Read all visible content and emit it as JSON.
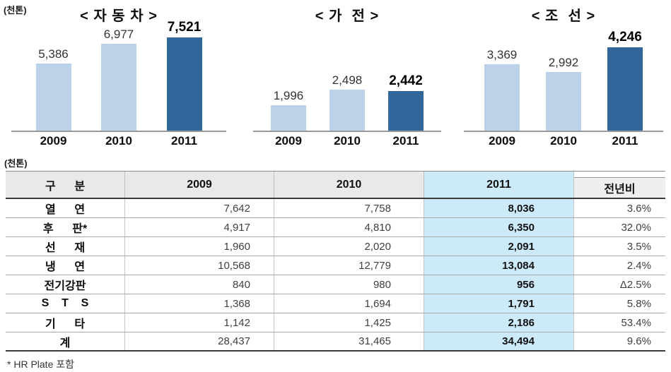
{
  "colors": {
    "bar_light": "#BCD2E9",
    "bar_dark": "#31679B",
    "highlight": "#CDEAFB",
    "header_gray": "#E9E9E9",
    "axis_line": "#9A9A9A"
  },
  "chart_data": [
    {
      "type": "bar",
      "title": "< 자 동 차 >",
      "unit_label": "(천톤)",
      "categories": [
        "2009",
        "2010",
        "2011"
      ],
      "values": [
        5386,
        6977,
        7521
      ],
      "value_labels": [
        "5,386",
        "6,977",
        "7,521"
      ],
      "ylim": [
        0,
        8700
      ],
      "highlight_index": 2,
      "legend": "none",
      "grid": "off"
    },
    {
      "type": "bar",
      "title": "< 가  전 >",
      "categories": [
        "2009",
        "2010",
        "2011"
      ],
      "values": [
        1996,
        2498,
        2442
      ],
      "value_labels": [
        "1,996",
        "2,498",
        "2,442"
      ],
      "ylim": [
        1200,
        4600
      ],
      "highlight_index": 2,
      "legend": "none",
      "grid": "off"
    },
    {
      "type": "bar",
      "title": "< 조  선 >",
      "categories": [
        "2009",
        "2010",
        "2011"
      ],
      "values": [
        3369,
        2992,
        4246
      ],
      "value_labels": [
        "3,369",
        "2,992",
        "4,246"
      ],
      "ylim": [
        0,
        5500
      ],
      "highlight_index": 2,
      "legend": "none",
      "grid": "off"
    },
    {
      "type": "table",
      "unit_label": "(천톤)",
      "columns": [
        "구      분",
        "2009",
        "2010",
        "2011",
        "전년비"
      ],
      "highlighted_column": "2011",
      "rows": [
        {
          "label": "열      연",
          "y2009": "7,642",
          "y2010": "7,758",
          "y2011": "8,036",
          "yoy": "3.6%"
        },
        {
          "label": "후      판*",
          "y2009": "4,917",
          "y2010": "4,810",
          "y2011": "6,350",
          "yoy": "32.0%"
        },
        {
          "label": "선      재",
          "y2009": "1,960",
          "y2010": "2,020",
          "y2011": "2,091",
          "yoy": "3.5%"
        },
        {
          "label": "냉      연",
          "y2009": "10,568",
          "y2010": "12,779",
          "y2011": "13,084",
          "yoy": "2.4%"
        },
        {
          "label": "전기강판",
          "y2009": "840",
          "y2010": "980",
          "y2011": "956",
          "yoy": "Δ2.5%"
        },
        {
          "label": "S    T    S",
          "y2009": "1,368",
          "y2010": "1,694",
          "y2011": "1,791",
          "yoy": "5.8%"
        },
        {
          "label": "기      타",
          "y2009": "1,142",
          "y2010": "1,425",
          "y2011": "2,186",
          "yoy": "53.4%"
        },
        {
          "label": "계",
          "y2009": "28,437",
          "y2010": "31,465",
          "y2011": "34,494",
          "yoy": "9.6%"
        }
      ],
      "footnote": "* HR Plate 포함"
    }
  ]
}
